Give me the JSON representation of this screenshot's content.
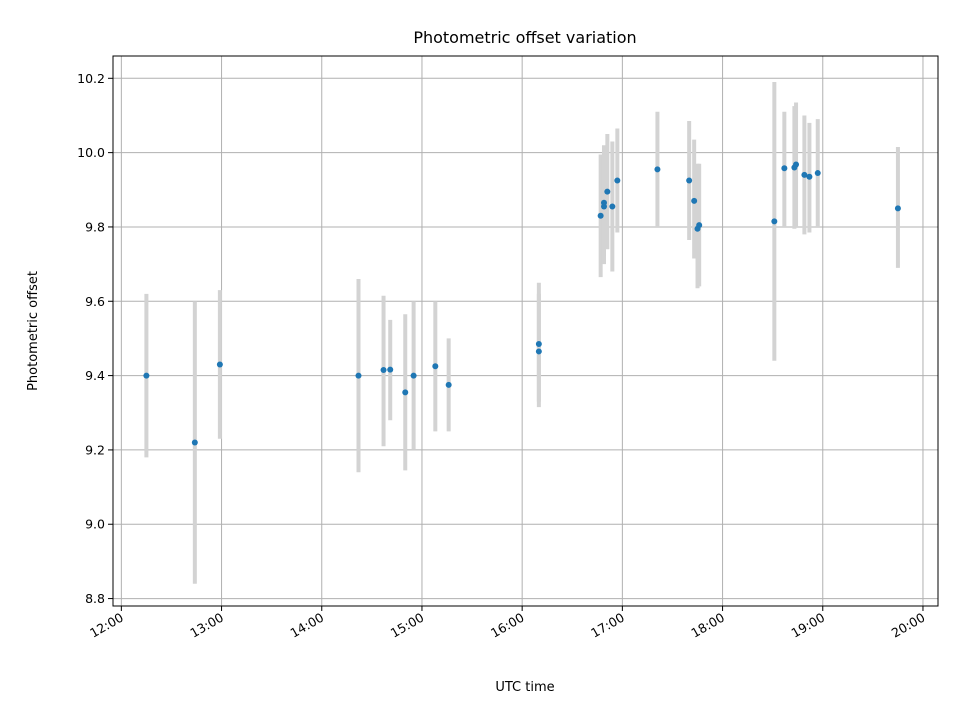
{
  "chart_data": {
    "type": "scatter",
    "title": "Photometric offset variation",
    "xlabel": "UTC time",
    "ylabel": "Photometric offset",
    "grid": true,
    "legend": "none",
    "xlim": [
      "11:55",
      "20:09"
    ],
    "ylim": [
      8.78,
      10.26
    ],
    "x_ticks": [
      "12:00",
      "13:00",
      "14:00",
      "15:00",
      "16:00",
      "17:00",
      "18:00",
      "19:00",
      "20:00"
    ],
    "y_ticks": [
      "8.8",
      "9.0",
      "9.2",
      "9.4",
      "9.6",
      "9.8",
      "10.0",
      "10.2"
    ],
    "colors": {
      "points": "#1f77b4",
      "error_bars": "#d3d3d3",
      "grid": "#b0b0b0"
    },
    "series": [
      {
        "points": [
          {
            "x": "12:15",
            "y": 9.4,
            "ylow": 9.18,
            "yhigh": 9.62
          },
          {
            "x": "12:44",
            "y": 9.22,
            "ylow": 8.84,
            "yhigh": 9.6
          },
          {
            "x": "12:59",
            "y": 9.43,
            "ylow": 9.23,
            "yhigh": 9.63
          },
          {
            "x": "14:22",
            "y": 9.4,
            "ylow": 9.14,
            "yhigh": 9.66
          },
          {
            "x": "14:37",
            "y": 9.415,
            "ylow": 9.21,
            "yhigh": 9.615
          },
          {
            "x": "14:41",
            "y": 9.416,
            "ylow": 9.28,
            "yhigh": 9.55
          },
          {
            "x": "14:50",
            "y": 9.355,
            "ylow": 9.145,
            "yhigh": 9.565
          },
          {
            "x": "14:55",
            "y": 9.4,
            "ylow": 9.2,
            "yhigh": 9.6
          },
          {
            "x": "15:08",
            "y": 9.425,
            "ylow": 9.25,
            "yhigh": 9.6
          },
          {
            "x": "15:16",
            "y": 9.375,
            "ylow": 9.25,
            "yhigh": 9.5
          },
          {
            "x": "16:10",
            "y": 9.465,
            "ylow": 9.315,
            "yhigh": 9.62
          },
          {
            "x": "16:10",
            "y": 9.485,
            "ylow": 9.33,
            "yhigh": 9.65
          },
          {
            "x": "16:47",
            "y": 9.83,
            "ylow": 9.665,
            "yhigh": 9.995
          },
          {
            "x": "16:49",
            "y": 9.855,
            "ylow": 9.7,
            "yhigh": 10.01
          },
          {
            "x": "16:49",
            "y": 9.865,
            "ylow": 9.72,
            "yhigh": 10.02
          },
          {
            "x": "16:51",
            "y": 9.895,
            "ylow": 9.74,
            "yhigh": 10.05
          },
          {
            "x": "16:54",
            "y": 9.855,
            "ylow": 9.68,
            "yhigh": 10.03
          },
          {
            "x": "16:57",
            "y": 9.925,
            "ylow": 9.785,
            "yhigh": 10.065
          },
          {
            "x": "17:21",
            "y": 9.955,
            "ylow": 9.8,
            "yhigh": 10.11
          },
          {
            "x": "17:40",
            "y": 9.925,
            "ylow": 9.765,
            "yhigh": 10.085
          },
          {
            "x": "17:43",
            "y": 9.87,
            "ylow": 9.715,
            "yhigh": 10.035
          },
          {
            "x": "17:45",
            "y": 9.795,
            "ylow": 9.635,
            "yhigh": 9.97
          },
          {
            "x": "17:46",
            "y": 9.805,
            "ylow": 9.64,
            "yhigh": 9.97
          },
          {
            "x": "18:31",
            "y": 9.815,
            "ylow": 9.44,
            "yhigh": 10.19
          },
          {
            "x": "18:37",
            "y": 9.958,
            "ylow": 9.8,
            "yhigh": 10.11
          },
          {
            "x": "18:43",
            "y": 9.96,
            "ylow": 9.795,
            "yhigh": 10.125
          },
          {
            "x": "18:44",
            "y": 9.968,
            "ylow": 9.8,
            "yhigh": 10.135
          },
          {
            "x": "18:49",
            "y": 9.94,
            "ylow": 9.78,
            "yhigh": 10.1
          },
          {
            "x": "18:52",
            "y": 9.935,
            "ylow": 9.785,
            "yhigh": 10.08
          },
          {
            "x": "18:57",
            "y": 9.945,
            "ylow": 9.8,
            "yhigh": 10.09
          },
          {
            "x": "19:45",
            "y": 9.85,
            "ylow": 9.69,
            "yhigh": 10.015
          }
        ]
      }
    ]
  }
}
